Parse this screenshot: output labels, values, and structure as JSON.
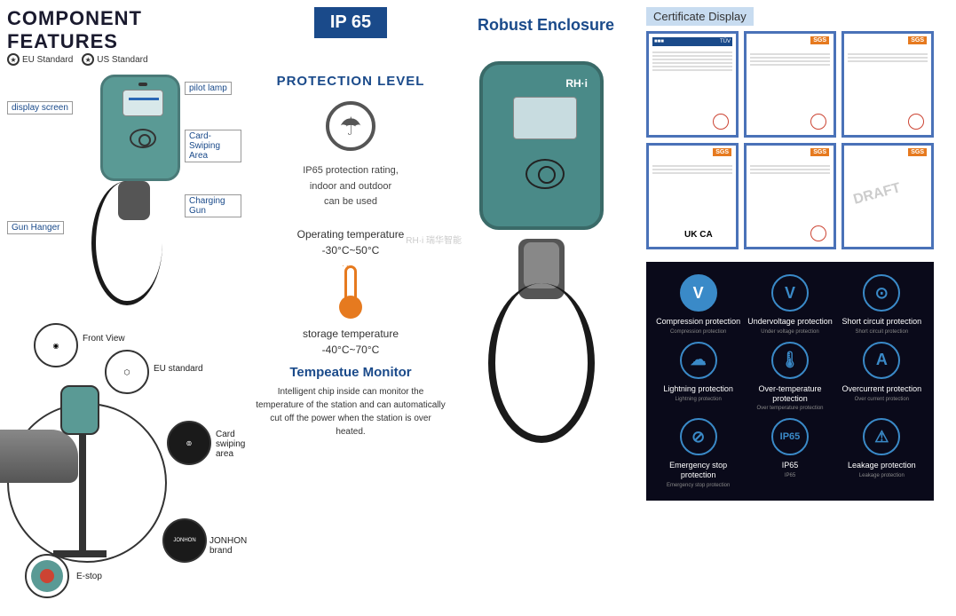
{
  "left": {
    "title": "COMPONENT FEATURES",
    "eu_standard": "EU Standard",
    "us_standard": "US Standard",
    "labels": {
      "display": "display screen",
      "pilot": "pilot lamp",
      "card": "Card-Swiping Area",
      "charging": "Charging Gun",
      "hanger": "Gun Hanger"
    },
    "accessories": {
      "front": "Front View",
      "eu": "EU standard",
      "card": "Card swiping area",
      "jonhon": "JONHON brand",
      "estop": "E-stop"
    }
  },
  "mid": {
    "ip_badge": "IP 65",
    "prot_title": "PROTECTION LEVEL",
    "prot_lines": [
      "IP65 protection rating,",
      "indoor and outdoor",
      "can be used"
    ],
    "op_temp_title": "Operating temperature",
    "op_temp": "-30°C~50°C",
    "storage_temp_title": "storage temperature",
    "storage_temp": "-40°C~70°C",
    "temp_monitor_title": "Tempeatue Monitor",
    "temp_monitor_body": "Intelligent chip inside can monitor the temperature of the station and can automatically cut off the power when the station is over heated.",
    "watermark": "RH·i 瑞华智能"
  },
  "enclosure": {
    "title": "Robust Enclosure",
    "brand": "RH·i"
  },
  "right": {
    "cert_title": "Certificate Display",
    "cert_sgs": "SGS",
    "cert_tuv": "TÜV",
    "cert_uk": "UK CA",
    "cert_draft": "DRAFT",
    "protections": [
      {
        "icon": "V",
        "filled": true,
        "main": "Compression protection",
        "sub": "Compression protection"
      },
      {
        "icon": "V",
        "filled": false,
        "main": "Undervoltage protection",
        "sub": "Under voltage protection"
      },
      {
        "icon": "⊙",
        "filled": false,
        "main": "Short circuit protection",
        "sub": "Short circuit protection"
      },
      {
        "icon": "☁",
        "filled": false,
        "main": "Lightning protection",
        "sub": "Lightning protection"
      },
      {
        "icon": "🌡",
        "filled": false,
        "main": "Over-temperature protection",
        "sub": "Over temperature protection"
      },
      {
        "icon": "A",
        "filled": false,
        "main": "Overcurrent protection",
        "sub": "Over current protection"
      },
      {
        "icon": "⊘",
        "filled": false,
        "main": "Emergency stop protection",
        "sub": "Emergency stop protection"
      },
      {
        "icon": "IP65",
        "filled": false,
        "main": "IP65",
        "sub": "IP65",
        "small": true
      },
      {
        "icon": "⚠",
        "filled": false,
        "main": "Leakage protection",
        "sub": "Leakage protection"
      }
    ]
  },
  "colors": {
    "primary_blue": "#1a4a8a",
    "teal": "#5a9a95",
    "orange": "#e67a1f",
    "dark_bg": "#0a0a1a",
    "icon_blue": "#3a8ac8"
  }
}
